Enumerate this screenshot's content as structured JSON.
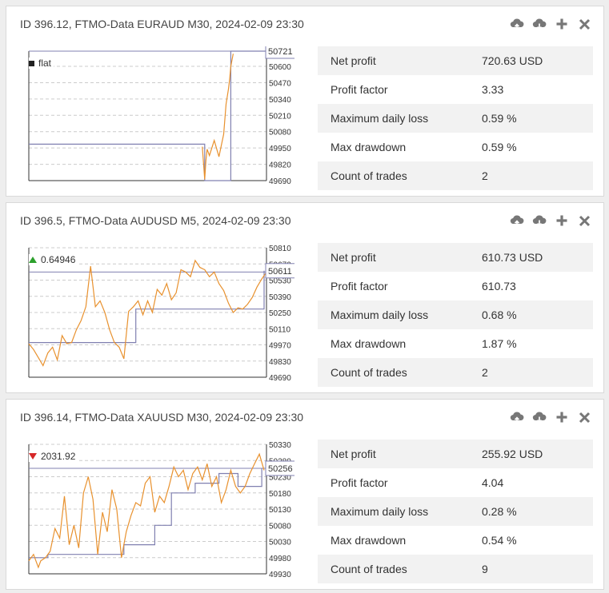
{
  "accent_orange": "#e8912e",
  "equity_line": "#8080b0",
  "icons": [
    "cloud-upload-icon",
    "cloud-download-icon",
    "plus-icon",
    "close-icon"
  ],
  "cards": [
    {
      "title": "ID 396.12, FTMO-Data EURAUD M30, 2024-02-09 23:30",
      "legend": {
        "symbol": "square",
        "text": "flat"
      },
      "stats": [
        {
          "label": "Net profit",
          "value": "720.63 USD"
        },
        {
          "label": "Profit factor",
          "value": "3.33"
        },
        {
          "label": "Maximum daily loss",
          "value": "0.59 %"
        },
        {
          "label": "Max drawdown",
          "value": "0.59 %"
        },
        {
          "label": "Count of trades",
          "value": "2"
        }
      ]
    },
    {
      "title": "ID 396.5, FTMO-Data AUDUSD M5, 2024-02-09 23:30",
      "legend": {
        "symbol": "up",
        "text": "0.64946"
      },
      "stats": [
        {
          "label": "Net profit",
          "value": "610.73 USD"
        },
        {
          "label": "Profit factor",
          "value": "610.73"
        },
        {
          "label": "Maximum daily loss",
          "value": "0.68 %"
        },
        {
          "label": "Max drawdown",
          "value": "1.87 %"
        },
        {
          "label": "Count of trades",
          "value": "2"
        }
      ]
    },
    {
      "title": "ID 396.14, FTMO-Data XAUUSD M30, 2024-02-09 23:30",
      "legend": {
        "symbol": "down",
        "text": "2031.92"
      },
      "stats": [
        {
          "label": "Net profit",
          "value": "255.92 USD"
        },
        {
          "label": "Profit factor",
          "value": "4.04"
        },
        {
          "label": "Maximum daily loss",
          "value": "0.28 %"
        },
        {
          "label": "Max drawdown",
          "value": "0.54 %"
        },
        {
          "label": "Count of trades",
          "value": "9"
        }
      ]
    }
  ],
  "chart_data": [
    {
      "type": "line",
      "ylim": [
        49690,
        50721
      ],
      "yticks": [
        50600,
        50470,
        50340,
        50210,
        50080,
        49950,
        49820,
        49690
      ],
      "current_value_label": "50721",
      "series": [
        {
          "role": "equity",
          "x": [
            0,
            0.74,
            0.86,
            0.86,
            1.0
          ],
          "y": [
            50721,
            50721,
            50721,
            50721,
            50721
          ]
        },
        {
          "role": "balance",
          "x": [
            0,
            0.74,
            0.74,
            0.85,
            0.85,
            1.0
          ],
          "y": [
            49980,
            49980,
            49690,
            49690,
            50721,
            50721
          ]
        },
        {
          "role": "price",
          "x": [
            0.73,
            0.74,
            0.745,
            0.75,
            0.76,
            0.78,
            0.8,
            0.82,
            0.83,
            0.84,
            0.845,
            0.85,
            0.86
          ],
          "y": [
            49960,
            49700,
            49850,
            49940,
            49890,
            50010,
            49880,
            50060,
            50300,
            50420,
            50500,
            50600,
            50700
          ]
        }
      ]
    },
    {
      "type": "line",
      "ylim": [
        49690,
        50810
      ],
      "yticks": [
        50810,
        50670,
        50530,
        50390,
        50250,
        50110,
        49970,
        49830,
        49690
      ],
      "current_value_label": "50611",
      "series": [
        {
          "role": "equity",
          "x": [
            0,
            1.0
          ],
          "y": [
            50600,
            50600
          ]
        },
        {
          "role": "balance",
          "x": [
            0,
            0.45,
            0.45,
            0.99,
            0.99
          ],
          "y": [
            49990,
            49990,
            50280,
            50280,
            50611
          ]
        },
        {
          "role": "price",
          "x": [
            0.0,
            0.02,
            0.04,
            0.06,
            0.08,
            0.1,
            0.12,
            0.14,
            0.16,
            0.18,
            0.2,
            0.22,
            0.24,
            0.26,
            0.28,
            0.3,
            0.32,
            0.34,
            0.36,
            0.38,
            0.4,
            0.42,
            0.44,
            0.46,
            0.48,
            0.5,
            0.52,
            0.54,
            0.56,
            0.58,
            0.6,
            0.62,
            0.64,
            0.66,
            0.68,
            0.7,
            0.72,
            0.74,
            0.76,
            0.78,
            0.8,
            0.82,
            0.84,
            0.86,
            0.88,
            0.9,
            0.92,
            0.94,
            0.96,
            0.98,
            1.0
          ],
          "y": [
            49980,
            49930,
            49860,
            49790,
            49900,
            49950,
            49840,
            50050,
            49980,
            49990,
            50100,
            50180,
            50300,
            50650,
            50300,
            50350,
            50250,
            50100,
            49990,
            49950,
            49850,
            50260,
            50300,
            50350,
            50230,
            50350,
            50250,
            50450,
            50400,
            50500,
            50360,
            50420,
            50620,
            50600,
            50560,
            50700,
            50640,
            50620,
            50560,
            50600,
            50500,
            50440,
            50330,
            50250,
            50290,
            50280,
            50320,
            50380,
            50470,
            50540,
            50600
          ]
        }
      ]
    },
    {
      "type": "line",
      "ylim": [
        49930,
        50330
      ],
      "yticks": [
        50330,
        50280,
        50230,
        50180,
        50130,
        50080,
        50030,
        49980,
        49930
      ],
      "current_value_label": "50256",
      "series": [
        {
          "role": "equity",
          "x": [
            0,
            1.0
          ],
          "y": [
            50256,
            50256
          ]
        },
        {
          "role": "balance",
          "x": [
            0,
            0.08,
            0.08,
            0.4,
            0.4,
            0.53,
            0.53,
            0.6,
            0.6,
            0.7,
            0.7,
            0.8,
            0.8,
            0.88,
            0.88,
            0.98,
            0.98
          ],
          "y": [
            49980,
            49980,
            49990,
            49990,
            50020,
            50020,
            50080,
            50080,
            50180,
            50180,
            50210,
            50210,
            50240,
            50240,
            50200,
            50200,
            50256
          ]
        },
        {
          "role": "price",
          "x": [
            0.0,
            0.02,
            0.04,
            0.05,
            0.07,
            0.09,
            0.11,
            0.13,
            0.15,
            0.17,
            0.19,
            0.21,
            0.23,
            0.25,
            0.27,
            0.29,
            0.31,
            0.33,
            0.35,
            0.37,
            0.39,
            0.41,
            0.43,
            0.45,
            0.47,
            0.49,
            0.51,
            0.53,
            0.55,
            0.57,
            0.59,
            0.61,
            0.63,
            0.65,
            0.67,
            0.69,
            0.71,
            0.73,
            0.75,
            0.77,
            0.79,
            0.81,
            0.83,
            0.85,
            0.87,
            0.89,
            0.91,
            0.93,
            0.95,
            0.97,
            0.99
          ],
          "y": [
            49970,
            49990,
            49950,
            49970,
            49980,
            50000,
            50070,
            50040,
            50170,
            50020,
            50080,
            50010,
            50180,
            50230,
            50160,
            49990,
            50120,
            50060,
            50190,
            50130,
            49980,
            50060,
            50110,
            50150,
            50140,
            50210,
            50230,
            50120,
            50170,
            50150,
            50200,
            50260,
            50230,
            50250,
            50190,
            50240,
            50260,
            50220,
            50270,
            50200,
            50230,
            50150,
            50190,
            50250,
            50200,
            50180,
            50200,
            50240,
            50270,
            50300,
            50250
          ]
        }
      ]
    }
  ]
}
